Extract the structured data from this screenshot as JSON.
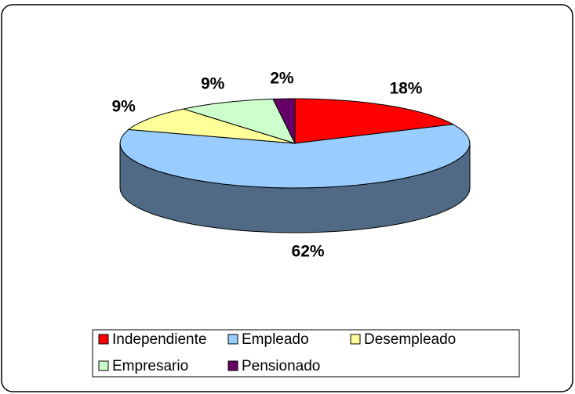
{
  "chart_data": {
    "type": "pie3d",
    "categories": [
      "Independiente",
      "Empleado",
      "Desempleado",
      "Empresario",
      "Pensionado"
    ],
    "values": [
      18,
      62,
      9,
      9,
      2
    ],
    "value_labels": [
      "18%",
      "62%",
      "9%",
      "9%",
      "2%"
    ],
    "colors": [
      "#ff0000",
      "#99ccff",
      "#ffff99",
      "#ccffcc",
      "#660066"
    ],
    "legend": "bottom"
  }
}
